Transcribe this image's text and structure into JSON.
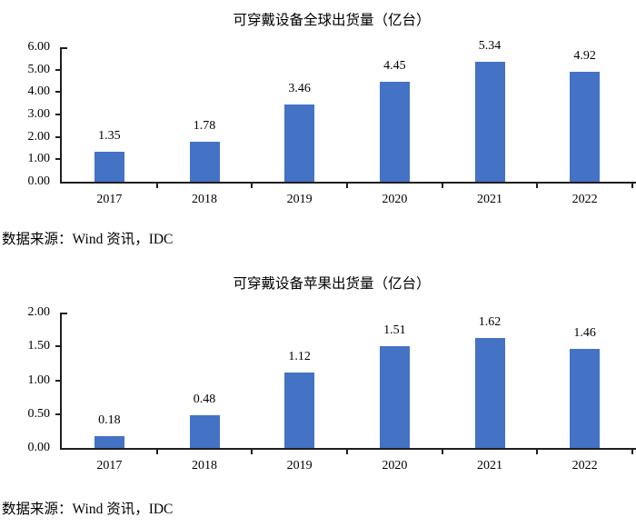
{
  "page": {
    "background_color": "#ffffff",
    "text_color": "#000000",
    "axis_color": "#1f1f1f"
  },
  "chart_data": [
    {
      "type": "bar",
      "title": "可穿戴设备全球出货量（亿台）",
      "categories": [
        "2017",
        "2018",
        "2019",
        "2020",
        "2021",
        "2022"
      ],
      "values": [
        1.35,
        1.78,
        3.46,
        4.45,
        5.34,
        4.92
      ],
      "data_labels": [
        "1.35",
        "1.78",
        "3.46",
        "4.45",
        "5.34",
        "4.92"
      ],
      "xlabel": "",
      "ylabel": "",
      "ylim": [
        0,
        6
      ],
      "y_tick_labels": [
        "0.00",
        "1.00",
        "2.00",
        "3.00",
        "4.00",
        "5.00",
        "6.00"
      ],
      "grid": false,
      "legend": "none",
      "bar_color": "#4472C4",
      "source_note": "数据来源：Wind 资讯，IDC"
    },
    {
      "type": "bar",
      "title": "可穿戴设备苹果出货量（亿台）",
      "categories": [
        "2017",
        "2018",
        "2019",
        "2020",
        "2021",
        "2022"
      ],
      "values": [
        0.18,
        0.48,
        1.12,
        1.51,
        1.62,
        1.46
      ],
      "data_labels": [
        "0.18",
        "0.48",
        "1.12",
        "1.51",
        "1.62",
        "1.46"
      ],
      "xlabel": "",
      "ylabel": "",
      "ylim": [
        0,
        2
      ],
      "y_tick_labels": [
        "0.00",
        "0.50",
        "1.00",
        "1.50",
        "2.00"
      ],
      "grid": false,
      "legend": "none",
      "bar_color": "#4472C4",
      "source_note": "数据来源：Wind 资讯，IDC"
    }
  ]
}
